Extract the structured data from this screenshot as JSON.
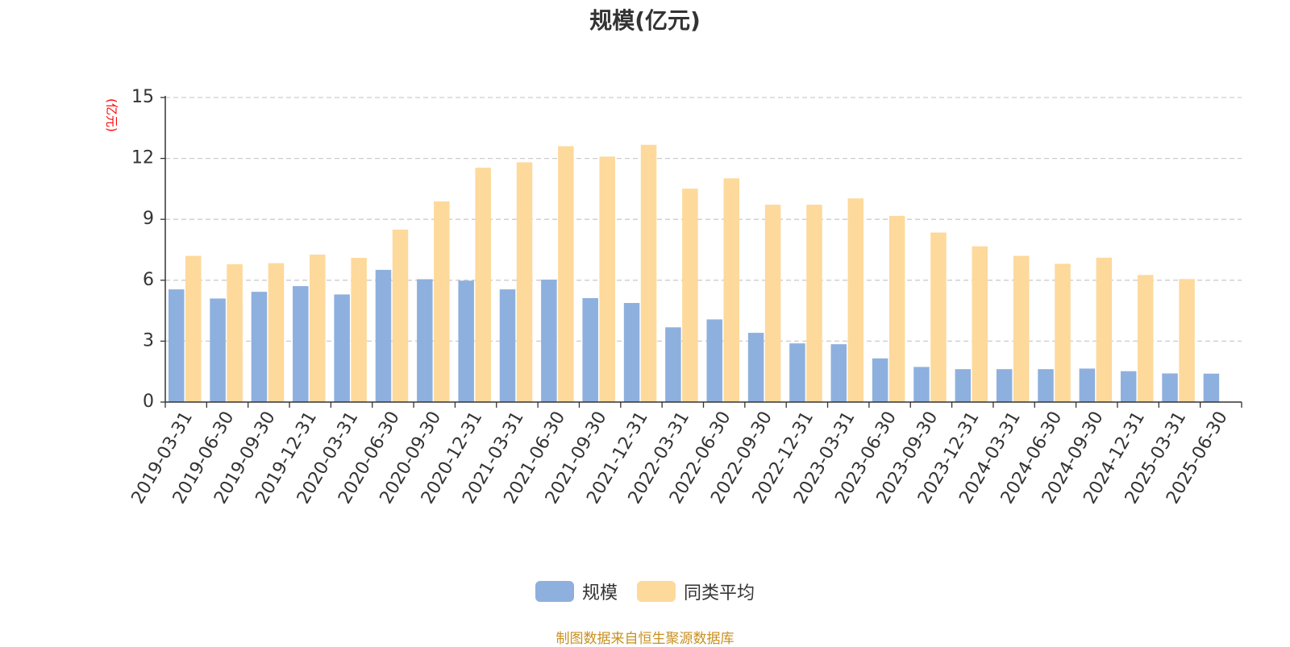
{
  "chart_data": {
    "type": "bar",
    "title": "规模(亿元)",
    "ylabel": "(亿元)",
    "ylim": [
      0,
      15
    ],
    "yticks": [
      0,
      3,
      6,
      9,
      12,
      15
    ],
    "grid": true,
    "legend_position": "bottom",
    "categories": [
      "2019-03-31",
      "2019-06-30",
      "2019-09-30",
      "2019-12-31",
      "2020-03-31",
      "2020-06-30",
      "2020-09-30",
      "2020-12-31",
      "2021-03-31",
      "2021-06-30",
      "2021-09-30",
      "2021-12-31",
      "2022-03-31",
      "2022-06-30",
      "2022-09-30",
      "2022-12-31",
      "2023-03-31",
      "2023-06-30",
      "2023-09-30",
      "2023-12-31",
      "2024-03-31",
      "2024-06-30",
      "2024-09-30",
      "2024-12-31",
      "2025-03-31",
      "2025-06-30"
    ],
    "series": [
      {
        "name": "规模",
        "color": "#8eb0de",
        "values": [
          5.55,
          5.1,
          5.43,
          5.71,
          5.3,
          6.51,
          6.05,
          5.98,
          5.55,
          6.03,
          5.12,
          4.88,
          3.68,
          4.07,
          3.41,
          2.89,
          2.85,
          2.15,
          1.73,
          1.62,
          1.62,
          1.62,
          1.65,
          1.52,
          1.41,
          1.4
        ]
      },
      {
        "name": "同类平均",
        "color": "#fdd99b",
        "values": [
          7.2,
          6.79,
          6.84,
          7.26,
          7.1,
          8.49,
          9.88,
          11.54,
          11.81,
          12.6,
          12.09,
          12.67,
          10.51,
          11.02,
          9.72,
          9.72,
          10.03,
          9.17,
          8.35,
          7.67,
          7.2,
          6.81,
          7.11,
          6.26,
          6.06,
          null
        ]
      }
    ]
  },
  "legend": {
    "items": [
      {
        "label": "规模",
        "color": "#8eb0de"
      },
      {
        "label": "同类平均",
        "color": "#fdd99b"
      }
    ]
  },
  "source_note": "制图数据来自恒生聚源数据库",
  "colors": {
    "axis": "#333333",
    "grid": "#cccccc",
    "ylabel": "#ff0000",
    "source": "#c89020",
    "title": "#333333"
  }
}
